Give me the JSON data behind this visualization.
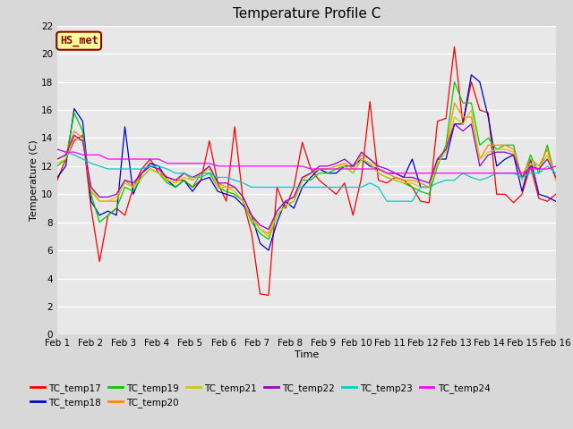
{
  "title": "Temperature Profile C",
  "xlabel": "Time",
  "ylabel": "Temperature (C)",
  "ylim": [
    0,
    22
  ],
  "xlim": [
    0,
    15
  ],
  "xtick_labels": [
    "Feb 1",
    "Feb 2",
    "Feb 3",
    "Feb 4",
    "Feb 5",
    "Feb 6",
    "Feb 7",
    "Feb 8",
    "Feb 9",
    "Feb 10",
    "Feb 11",
    "Feb 12",
    "Feb 13",
    "Feb 14",
    "Feb 15",
    "Feb 16"
  ],
  "xtick_positions": [
    0,
    1,
    2,
    3,
    4,
    5,
    6,
    7,
    8,
    9,
    10,
    11,
    12,
    13,
    14,
    15
  ],
  "ytick_positions": [
    0,
    2,
    4,
    6,
    8,
    10,
    12,
    14,
    16,
    18,
    20,
    22
  ],
  "series_order": [
    "TC_temp17",
    "TC_temp18",
    "TC_temp19",
    "TC_temp20",
    "TC_temp21",
    "TC_temp22",
    "TC_temp23",
    "TC_temp24"
  ],
  "series": {
    "TC_temp17": {
      "color": "#FF0000",
      "values": [
        11.0,
        12.5,
        13.8,
        14.2,
        9.0,
        5.2,
        8.5,
        9.0,
        8.5,
        10.5,
        11.8,
        12.5,
        11.5,
        11.2,
        11.0,
        11.0,
        10.5,
        11.0,
        13.8,
        10.8,
        9.5,
        14.8,
        9.5,
        7.2,
        2.9,
        2.8,
        10.5,
        9.0,
        10.5,
        13.7,
        11.8,
        11.0,
        10.5,
        10.0,
        10.8,
        8.5,
        11.2,
        16.6,
        11.0,
        10.8,
        11.2,
        11.0,
        10.5,
        9.5,
        9.4,
        15.2,
        15.4,
        20.5,
        15.0,
        18.0,
        16.0,
        15.8,
        10.0,
        10.0,
        9.4,
        10.0,
        12.0,
        9.7,
        9.5,
        10.0
      ]
    },
    "TC_temp18": {
      "color": "#0000CC",
      "values": [
        11.2,
        12.0,
        16.1,
        15.2,
        9.5,
        8.5,
        8.8,
        8.5,
        14.8,
        10.0,
        11.5,
        12.2,
        12.0,
        11.0,
        10.5,
        11.0,
        10.2,
        11.0,
        11.2,
        10.2,
        10.0,
        9.8,
        9.2,
        8.5,
        6.5,
        6.0,
        8.0,
        9.5,
        9.0,
        10.5,
        11.2,
        11.8,
        11.5,
        11.5,
        12.0,
        12.0,
        12.5,
        12.0,
        11.8,
        11.5,
        11.5,
        11.2,
        12.5,
        10.5,
        10.5,
        12.5,
        12.5,
        15.0,
        15.0,
        18.5,
        18.0,
        15.5,
        12.0,
        12.5,
        12.8,
        10.2,
        12.5,
        10.0,
        9.8,
        9.5
      ]
    },
    "TC_temp19": {
      "color": "#00CC00",
      "values": [
        12.0,
        12.5,
        15.8,
        14.5,
        10.0,
        8.0,
        8.5,
        9.0,
        10.5,
        10.2,
        11.2,
        11.8,
        11.5,
        10.8,
        10.5,
        11.0,
        10.5,
        11.5,
        11.5,
        10.5,
        10.2,
        10.0,
        9.5,
        8.0,
        7.2,
        6.8,
        8.5,
        9.2,
        9.5,
        11.0,
        11.0,
        11.5,
        11.5,
        11.8,
        12.0,
        11.5,
        12.5,
        12.2,
        11.5,
        11.2,
        11.0,
        10.8,
        10.5,
        10.2,
        10.0,
        12.0,
        13.5,
        18.0,
        16.5,
        16.5,
        13.5,
        14.0,
        13.2,
        13.5,
        13.5,
        11.0,
        12.8,
        11.5,
        13.5,
        11.0
      ]
    },
    "TC_temp20": {
      "color": "#FF8800",
      "values": [
        12.5,
        12.8,
        14.5,
        14.0,
        10.2,
        9.5,
        9.5,
        9.5,
        11.0,
        10.5,
        11.5,
        12.0,
        11.8,
        11.0,
        10.8,
        11.5,
        11.0,
        11.5,
        12.0,
        10.8,
        10.5,
        10.5,
        9.8,
        8.5,
        7.5,
        7.2,
        8.8,
        9.5,
        9.8,
        11.2,
        11.5,
        11.8,
        11.8,
        12.0,
        12.2,
        11.8,
        12.8,
        12.5,
        11.8,
        11.5,
        11.2,
        11.0,
        11.0,
        10.8,
        10.5,
        12.5,
        13.2,
        16.5,
        15.5,
        15.5,
        12.5,
        13.5,
        13.5,
        13.5,
        13.2,
        11.2,
        12.5,
        12.0,
        13.2,
        11.0
      ]
    },
    "TC_temp21": {
      "color": "#CCCC00",
      "values": [
        12.2,
        12.5,
        14.0,
        13.8,
        10.5,
        9.5,
        9.5,
        9.8,
        10.8,
        10.5,
        11.2,
        11.8,
        11.5,
        11.0,
        10.8,
        11.2,
        11.0,
        11.5,
        11.8,
        10.5,
        10.5,
        10.2,
        9.5,
        8.2,
        7.5,
        7.0,
        8.5,
        9.2,
        9.5,
        11.0,
        11.5,
        11.8,
        11.8,
        12.0,
        12.0,
        11.5,
        12.5,
        12.2,
        11.5,
        11.2,
        11.0,
        10.8,
        10.8,
        10.5,
        10.5,
        12.2,
        13.0,
        15.5,
        15.0,
        16.0,
        12.5,
        13.0,
        13.2,
        13.2,
        13.0,
        11.0,
        12.2,
        11.8,
        12.8,
        11.0
      ]
    },
    "TC_temp22": {
      "color": "#9900CC",
      "values": [
        12.5,
        12.8,
        14.2,
        13.8,
        10.5,
        9.8,
        9.8,
        10.0,
        11.0,
        10.8,
        11.5,
        12.0,
        11.8,
        11.2,
        11.0,
        11.5,
        11.2,
        11.5,
        12.0,
        10.8,
        10.8,
        10.5,
        9.8,
        8.5,
        7.8,
        7.5,
        8.8,
        9.5,
        9.8,
        11.2,
        11.5,
        12.0,
        12.0,
        12.2,
        12.5,
        12.0,
        13.0,
        12.5,
        12.0,
        11.8,
        11.5,
        11.2,
        11.2,
        11.0,
        10.8,
        12.5,
        13.2,
        15.0,
        14.5,
        15.0,
        12.0,
        12.8,
        13.0,
        13.0,
        12.8,
        11.2,
        12.0,
        11.8,
        12.5,
        11.2
      ]
    },
    "TC_temp23": {
      "color": "#00CCCC",
      "values": [
        13.2,
        13.0,
        12.8,
        12.5,
        12.2,
        12.0,
        11.8,
        11.8,
        11.8,
        11.8,
        11.8,
        12.0,
        12.0,
        11.8,
        11.5,
        11.5,
        11.2,
        11.2,
        11.5,
        11.2,
        11.2,
        11.0,
        10.8,
        10.5,
        10.5,
        10.5,
        10.5,
        10.5,
        10.5,
        10.5,
        10.5,
        10.5,
        10.5,
        10.5,
        10.5,
        10.5,
        10.5,
        10.8,
        10.5,
        9.5,
        9.5,
        9.5,
        9.5,
        10.5,
        10.5,
        10.8,
        11.0,
        11.0,
        11.5,
        11.2,
        11.0,
        11.2,
        11.5,
        11.5,
        11.5,
        11.2,
        11.5,
        11.5,
        12.0,
        11.5
      ]
    },
    "TC_temp24": {
      "color": "#FF00FF",
      "values": [
        13.2,
        13.0,
        13.0,
        12.8,
        12.8,
        12.8,
        12.5,
        12.5,
        12.5,
        12.5,
        12.5,
        12.5,
        12.5,
        12.2,
        12.2,
        12.2,
        12.2,
        12.2,
        12.2,
        12.0,
        12.0,
        12.0,
        12.0,
        12.0,
        12.0,
        12.0,
        12.0,
        12.0,
        12.0,
        12.0,
        11.8,
        11.8,
        11.8,
        11.8,
        11.8,
        11.8,
        11.8,
        11.8,
        11.8,
        11.5,
        11.5,
        11.5,
        11.5,
        11.5,
        11.5,
        11.5,
        11.5,
        11.5,
        11.5,
        11.5,
        11.5,
        11.5,
        11.5,
        11.5,
        11.5,
        11.5,
        11.8,
        11.8,
        11.8,
        12.0
      ]
    }
  },
  "annotation_text": "HS_met",
  "annotation_color": "#8B0000",
  "annotation_bg": "#FFFF99",
  "plot_bg": "#E8E8E8",
  "title_fontsize": 11,
  "axis_label_fontsize": 8,
  "tick_fontsize": 7.5
}
